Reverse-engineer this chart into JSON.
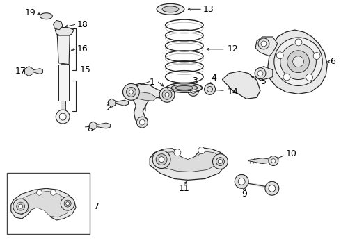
{
  "bg_color": "#ffffff",
  "line_color": "#222222",
  "text_color": "#000000",
  "fig_width": 4.9,
  "fig_height": 3.6,
  "dpi": 100
}
